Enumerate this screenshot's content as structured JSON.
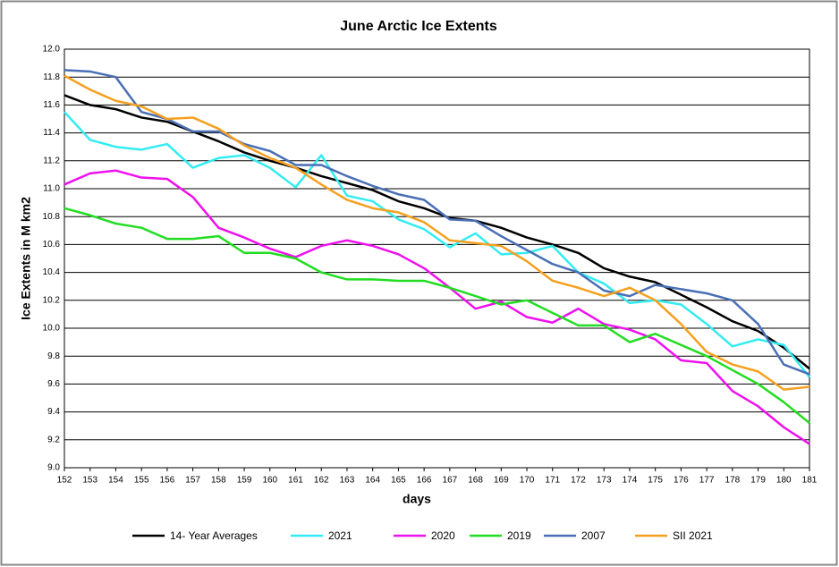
{
  "chart_data": {
    "type": "line",
    "title": "June Arctic Ice Extents",
    "x_label": "days",
    "y_label": "Ice Extents in M km2",
    "x": [
      152,
      153,
      154,
      155,
      156,
      157,
      158,
      159,
      160,
      161,
      162,
      163,
      164,
      165,
      166,
      167,
      168,
      169,
      170,
      171,
      172,
      173,
      174,
      175,
      176,
      177,
      178,
      179,
      180,
      181
    ],
    "xlim": [
      152,
      181
    ],
    "xticks": [
      152,
      153,
      154,
      155,
      156,
      157,
      158,
      159,
      160,
      161,
      162,
      163,
      164,
      165,
      166,
      167,
      168,
      169,
      170,
      171,
      172,
      173,
      174,
      175,
      176,
      177,
      178,
      179,
      180,
      181
    ],
    "ylim": [
      9.0,
      12.0
    ],
    "yticks": [
      {
        "value": 9,
        "label": "9.0"
      },
      9.2,
      9.4,
      9.6,
      9.8,
      {
        "value": 10,
        "label": "10.0"
      },
      10.2,
      10.4,
      10.6,
      10.8,
      {
        "value": 11,
        "label": "11.0"
      },
      11.2,
      11.4,
      11.6,
      11.8,
      {
        "value": 12,
        "label": "12.0"
      }
    ],
    "grid": true,
    "legend": "bottom",
    "series": [
      {
        "name": "14- Year Averages",
        "color": "#000000",
        "values": [
          11.67,
          11.6,
          11.57,
          11.51,
          11.48,
          11.41,
          11.34,
          11.26,
          11.2,
          11.15,
          11.09,
          11.04,
          10.99,
          10.91,
          10.86,
          10.79,
          10.77,
          10.72,
          10.65,
          10.6,
          10.54,
          10.43,
          10.37,
          10.33,
          10.24,
          10.15,
          10.05,
          9.98,
          9.86,
          9.71
        ]
      },
      {
        "name": "2021",
        "color": "#33ecf2",
        "values": [
          11.55,
          11.35,
          11.3,
          11.28,
          11.32,
          11.15,
          11.22,
          11.24,
          11.15,
          11.01,
          11.24,
          10.95,
          10.91,
          10.78,
          10.71,
          10.58,
          10.68,
          10.53,
          10.54,
          10.59,
          10.4,
          10.32,
          10.18,
          10.2,
          10.17,
          10.03,
          9.87,
          9.92,
          9.88,
          9.65
        ]
      },
      {
        "name": "2020",
        "color": "#ee11ee",
        "values": [
          11.03,
          11.11,
          11.13,
          11.08,
          11.07,
          10.94,
          10.72,
          10.65,
          10.57,
          10.51,
          10.59,
          10.63,
          10.59,
          10.53,
          10.43,
          10.29,
          10.14,
          10.19,
          10.08,
          10.04,
          10.14,
          10.03,
          9.99,
          9.92,
          9.77,
          9.75,
          9.55,
          9.44,
          9.29,
          9.17
        ]
      },
      {
        "name": "2019",
        "color": "#22dd22",
        "values": [
          10.86,
          10.81,
          10.75,
          10.72,
          10.64,
          10.64,
          10.66,
          10.54,
          10.54,
          10.5,
          10.4,
          10.35,
          10.35,
          10.34,
          10.34,
          10.29,
          10.23,
          10.17,
          10.2,
          10.11,
          10.02,
          10.02,
          9.9,
          9.96,
          9.88,
          9.8,
          9.7,
          9.6,
          9.47,
          9.32
        ]
      },
      {
        "name": "2007",
        "color": "#4a6fb5",
        "values": [
          11.85,
          11.84,
          11.8,
          11.55,
          11.5,
          11.41,
          11.41,
          11.32,
          11.27,
          11.17,
          11.17,
          11.09,
          11.02,
          10.96,
          10.92,
          10.78,
          10.77,
          10.66,
          10.56,
          10.46,
          10.4,
          10.27,
          10.23,
          10.31,
          10.28,
          10.25,
          10.2,
          10.03,
          9.74,
          9.67
        ]
      },
      {
        "name": "SII 2021",
        "color": "#f5a020",
        "values": [
          11.81,
          11.71,
          11.63,
          11.59,
          11.5,
          11.51,
          11.43,
          11.31,
          11.22,
          11.15,
          11.03,
          10.92,
          10.86,
          10.83,
          10.76,
          10.63,
          10.61,
          10.59,
          10.48,
          10.34,
          10.29,
          10.23,
          10.29,
          10.2,
          10.03,
          9.83,
          9.74,
          9.69,
          9.56,
          9.58
        ]
      }
    ]
  }
}
